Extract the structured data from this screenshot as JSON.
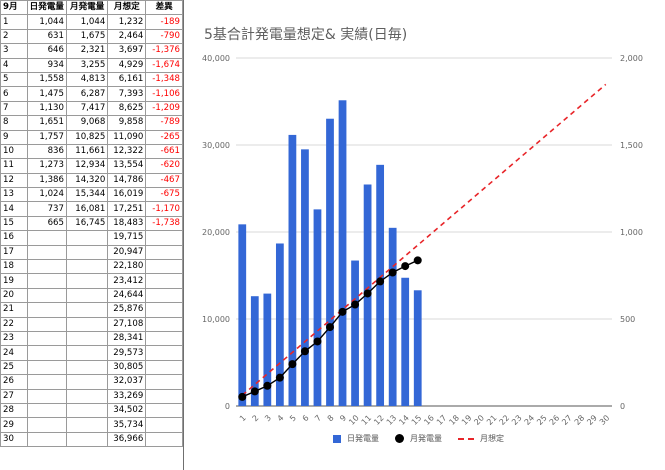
{
  "sheet": {
    "headers": [
      "9月",
      "日発電量",
      "月発電量",
      "月想定",
      "差異"
    ],
    "rows": [
      [
        "1",
        "1,044",
        "1,044",
        "1,232",
        "-189"
      ],
      [
        "2",
        "631",
        "1,675",
        "2,464",
        "-790"
      ],
      [
        "3",
        "646",
        "2,321",
        "3,697",
        "-1,376"
      ],
      [
        "4",
        "934",
        "3,255",
        "4,929",
        "-1,674"
      ],
      [
        "5",
        "1,558",
        "4,813",
        "6,161",
        "-1,348"
      ],
      [
        "6",
        "1,475",
        "6,287",
        "7,393",
        "-1,106"
      ],
      [
        "7",
        "1,130",
        "7,417",
        "8,625",
        "-1,209"
      ],
      [
        "8",
        "1,651",
        "9,068",
        "9,858",
        "-789"
      ],
      [
        "9",
        "1,757",
        "10,825",
        "11,090",
        "-265"
      ],
      [
        "10",
        "836",
        "11,661",
        "12,322",
        "-661"
      ],
      [
        "11",
        "1,273",
        "12,934",
        "13,554",
        "-620"
      ],
      [
        "12",
        "1,386",
        "14,320",
        "14,786",
        "-467"
      ],
      [
        "13",
        "1,024",
        "15,344",
        "16,019",
        "-675"
      ],
      [
        "14",
        "737",
        "16,081",
        "17,251",
        "-1,170"
      ],
      [
        "15",
        "665",
        "16,745",
        "18,483",
        "-1,738"
      ],
      [
        "16",
        "",
        "",
        "19,715",
        ""
      ],
      [
        "17",
        "",
        "",
        "20,947",
        ""
      ],
      [
        "18",
        "",
        "",
        "22,180",
        ""
      ],
      [
        "19",
        "",
        "",
        "23,412",
        ""
      ],
      [
        "20",
        "",
        "",
        "24,644",
        ""
      ],
      [
        "21",
        "",
        "",
        "25,876",
        ""
      ],
      [
        "22",
        "",
        "",
        "27,108",
        ""
      ],
      [
        "23",
        "",
        "",
        "28,341",
        ""
      ],
      [
        "24",
        "",
        "",
        "29,573",
        ""
      ],
      [
        "25",
        "",
        "",
        "30,805",
        ""
      ],
      [
        "26",
        "",
        "",
        "32,037",
        ""
      ],
      [
        "27",
        "",
        "",
        "33,269",
        ""
      ],
      [
        "28",
        "",
        "",
        "34,502",
        ""
      ],
      [
        "29",
        "",
        "",
        "35,734",
        ""
      ],
      [
        "30",
        "",
        "",
        "36,966",
        ""
      ]
    ]
  },
  "chart_data": {
    "type": "bar",
    "title": "5基合計発電量想定& 実績(日毎)",
    "categories": [
      "1",
      "2",
      "3",
      "4",
      "5",
      "6",
      "7",
      "8",
      "9",
      "10",
      "11",
      "12",
      "13",
      "14",
      "15",
      "16",
      "17",
      "18",
      "19",
      "20",
      "21",
      "22",
      "23",
      "24",
      "25",
      "26",
      "27",
      "28",
      "29",
      "30"
    ],
    "series": [
      {
        "name": "日発電量",
        "type": "bar",
        "axis": "right",
        "color": "#3367d6",
        "values": [
          1044,
          631,
          646,
          934,
          1558,
          1475,
          1130,
          1651,
          1757,
          836,
          1273,
          1386,
          1024,
          737,
          665,
          null,
          null,
          null,
          null,
          null,
          null,
          null,
          null,
          null,
          null,
          null,
          null,
          null,
          null,
          null
        ]
      },
      {
        "name": "月発電量",
        "type": "line-markers",
        "axis": "left",
        "color": "#000000",
        "values": [
          1044,
          1675,
          2321,
          3255,
          4813,
          6287,
          7417,
          9068,
          10825,
          11661,
          12934,
          14320,
          15344,
          16081,
          16745,
          null,
          null,
          null,
          null,
          null,
          null,
          null,
          null,
          null,
          null,
          null,
          null,
          null,
          null,
          null
        ]
      },
      {
        "name": "月想定",
        "type": "dashed-line",
        "axis": "left",
        "color": "#e8262a",
        "values": [
          1232,
          2464,
          3697,
          4929,
          6161,
          7393,
          8625,
          9858,
          11090,
          12322,
          13554,
          14786,
          16019,
          17251,
          18483,
          19715,
          20947,
          22180,
          23412,
          24644,
          25876,
          27108,
          28341,
          29573,
          30805,
          32037,
          33269,
          34502,
          35734,
          36966
        ]
      }
    ],
    "ylim_left": [
      0,
      40000
    ],
    "yticks_left": [
      "0",
      "10,000",
      "20,000",
      "30,000",
      "40,000"
    ],
    "ylim_right": [
      0,
      2000
    ],
    "yticks_right": [
      "0",
      "500",
      "1,000",
      "1,500",
      "2,000"
    ],
    "grid": true,
    "legend": "bottom"
  }
}
